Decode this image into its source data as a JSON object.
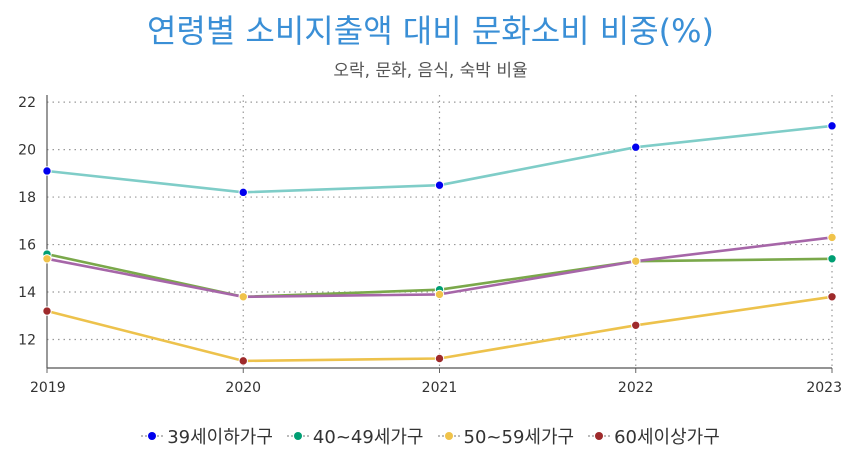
{
  "chart_data": {
    "type": "line",
    "title": "연령별 소비지출액 대비 문화소비 비중(%)",
    "subtitle": "오락, 문화, 음식, 숙박 비율",
    "xlabel": "",
    "ylabel": "",
    "x": [
      "2019",
      "2020",
      "2021",
      "2022",
      "2023"
    ],
    "ylim": [
      10.8,
      22.3
    ],
    "yticks": [
      12,
      14,
      16,
      18,
      20,
      22
    ],
    "grid": true,
    "legend_position": "bottom",
    "series": [
      {
        "name": "39세이하가구",
        "marker_color": "#0000ee",
        "line_color": "#7fcdc8",
        "values": [
          19.1,
          18.2,
          18.5,
          20.1,
          21.0
        ]
      },
      {
        "name": "40~49세가구",
        "marker_color": "#009e73",
        "line_color": "#7aa84a",
        "values": [
          15.6,
          13.8,
          14.1,
          15.3,
          15.4
        ]
      },
      {
        "name": "50~59세가구",
        "marker_color": "#f0c34a",
        "line_color": "#a666a8",
        "values": [
          15.4,
          13.8,
          13.9,
          15.3,
          16.3
        ]
      },
      {
        "name": "60세이상가구",
        "marker_color": "#9e2a2b",
        "line_color": "#edc24c",
        "values": [
          13.2,
          11.1,
          11.2,
          12.6,
          13.8
        ]
      }
    ]
  }
}
